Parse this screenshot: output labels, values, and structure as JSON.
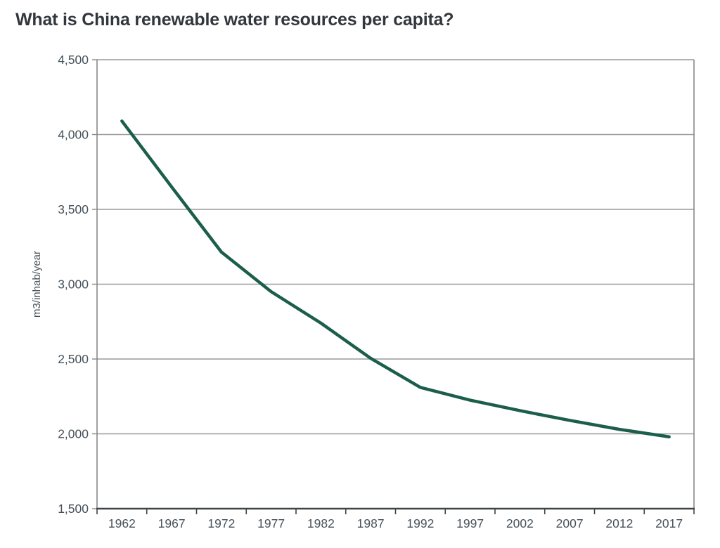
{
  "page": {
    "title": "What is China renewable water resources per capita?"
  },
  "chart_data": {
    "type": "line",
    "title": "What is China renewable water resources per capita?",
    "xlabel": "",
    "ylabel": "m3/inhab/year",
    "categories": [
      "1962",
      "1967",
      "1972",
      "1977",
      "1982",
      "1987",
      "1992",
      "1997",
      "2002",
      "2007",
      "2012",
      "2017"
    ],
    "series": [
      {
        "name": "China renewable water resources per capita (m3/inhab/year)",
        "values": [
          4090,
          3650,
          3215,
          2950,
          2740,
          2505,
          2310,
          2225,
          2155,
          2090,
          2030,
          1980
        ]
      }
    ],
    "ylim": [
      1500,
      4500
    ],
    "ytick_step": 500,
    "grid": "horizontal",
    "legend_position": "none",
    "style": {
      "line_color": "#1b5e4b",
      "line_width": 4.5,
      "grid_color": "#9a9a9a",
      "plot_border_color": "#85898c",
      "axis_color": "#3f4347",
      "tick_label_color": "#47525a",
      "title_color": "#32373d",
      "background_color": "#ffffff"
    }
  }
}
